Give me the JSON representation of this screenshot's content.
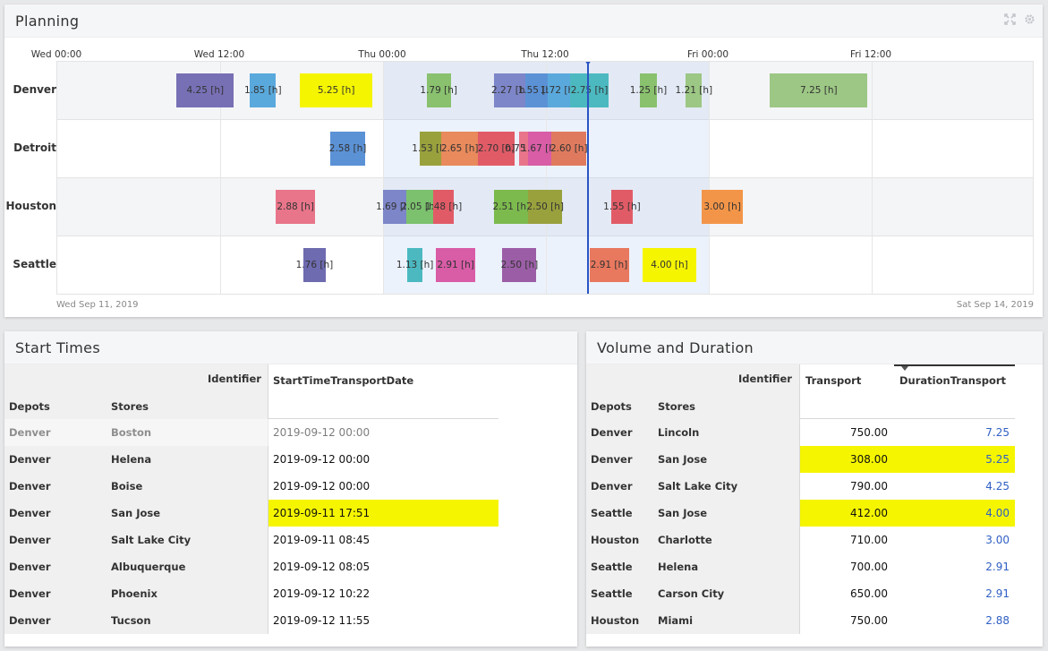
{
  "planning": {
    "title": "Planning",
    "icons": [
      "expand-icon",
      "gear-icon"
    ],
    "axis_labels": [
      "Wed 00:00",
      "Wed 12:00",
      "Thu 00:00",
      "Thu 12:00",
      "Fri 00:00",
      "Fri 12:00"
    ],
    "start_date": "Wed Sep 11, 2019",
    "end_date": "Sat Sep 14, 2019",
    "rows": [
      {
        "label": "Denver",
        "bars": [
          {
            "start": 8.8,
            "end": 13.0,
            "label": "4.25 [h]",
            "color": "#7770b5"
          },
          {
            "start": 14.2,
            "end": 16.1,
            "label": "1.85 [h]",
            "color": "#5aa9dd"
          },
          {
            "start": 17.9,
            "end": 23.2,
            "label": "5.25 [h]",
            "color": "#f5f500"
          },
          {
            "start": 27.2,
            "end": 29.0,
            "label": "1.79 [h]",
            "color": "#89c16e"
          },
          {
            "start": 32.2,
            "end": 34.5,
            "label": "2.27 [h]",
            "color": "#7d86c8"
          },
          {
            "start": 34.5,
            "end": 36.1,
            "label": "1.55 [h]",
            "color": "#5b92d6"
          },
          {
            "start": 36.1,
            "end": 37.8,
            "label": "1.72 [h]",
            "color": "#5aa9dd"
          },
          {
            "start": 37.8,
            "end": 40.6,
            "label": "2.75 [h]",
            "color": "#4cb9c0"
          },
          {
            "start": 42.9,
            "end": 44.2,
            "label": "1.25 [h]",
            "color": "#89c16e"
          },
          {
            "start": 46.3,
            "end": 47.5,
            "label": "1.21 [h]",
            "color": "#9cc784"
          },
          {
            "start": 52.5,
            "end": 59.7,
            "label": "7.25 [h]",
            "color": "#9cc784"
          }
        ]
      },
      {
        "label": "Detroit",
        "bars": [
          {
            "start": 20.1,
            "end": 22.7,
            "label": "2.58 [h]",
            "color": "#5b92d6"
          },
          {
            "start": 26.7,
            "end": 28.3,
            "label": "1.53 [h]",
            "color": "#99a13d"
          },
          {
            "start": 28.3,
            "end": 31.0,
            "label": "2.65 [h]",
            "color": "#e88a5c"
          },
          {
            "start": 31.0,
            "end": 33.7,
            "label": "2.70 [h]",
            "color": "#e15b67"
          },
          {
            "start": 34.0,
            "end": 34.7,
            "label": "0.75 [h]",
            "color": "#e8758a"
          },
          {
            "start": 34.7,
            "end": 36.4,
            "label": "1.67 [h]",
            "color": "#d85ca6"
          },
          {
            "start": 36.4,
            "end": 39.0,
            "label": "2.60 [h]",
            "color": "#e07a5e"
          }
        ]
      },
      {
        "label": "Houston",
        "bars": [
          {
            "start": 16.1,
            "end": 19.0,
            "label": "2.88 [h]",
            "color": "#e8758a"
          },
          {
            "start": 24.0,
            "end": 25.7,
            "label": "1.69 [h]",
            "color": "#7d86c8"
          },
          {
            "start": 25.7,
            "end": 27.7,
            "label": "2.05 [h]",
            "color": "#7cc16e"
          },
          {
            "start": 27.7,
            "end": 29.2,
            "label": "1.48 [h]",
            "color": "#e15b67"
          },
          {
            "start": 32.2,
            "end": 34.7,
            "label": "2.51 [h]",
            "color": "#7cba4e"
          },
          {
            "start": 34.7,
            "end": 37.2,
            "label": "2.50 [h]",
            "color": "#99a13d"
          },
          {
            "start": 40.8,
            "end": 42.4,
            "label": "1.55 [h]",
            "color": "#e15b67"
          },
          {
            "start": 47.5,
            "end": 50.5,
            "label": "3.00 [h]",
            "color": "#f39548"
          }
        ]
      },
      {
        "label": "Seattle",
        "bars": [
          {
            "start": 18.1,
            "end": 19.8,
            "label": "1.76 [h]",
            "color": "#6e6bb0"
          },
          {
            "start": 25.8,
            "end": 26.9,
            "label": "1.13 [h]",
            "color": "#4cb9c0"
          },
          {
            "start": 27.9,
            "end": 30.8,
            "label": "2.91 [h]",
            "color": "#d85ca6"
          },
          {
            "start": 32.8,
            "end": 35.3,
            "label": "2.50 [h]",
            "color": "#9b5ea6"
          },
          {
            "start": 39.2,
            "end": 42.1,
            "label": "2.91 [h]",
            "color": "#e8785e"
          },
          {
            "start": 43.1,
            "end": 47.1,
            "label": "4.00 [h]",
            "color": "#f5f500"
          }
        ]
      }
    ],
    "highlight": {
      "start": 24,
      "end": 48
    },
    "now": 39.1
  },
  "start_times": {
    "title": "Start Times",
    "identifier_label": "Identifier",
    "col_depots": "Depots",
    "col_stores": "Stores",
    "col_value": "StartTimeTransportDate",
    "rows": [
      {
        "depot": "Denver",
        "store": "Boston",
        "value": "2019-09-12 00:00",
        "faded": true,
        "highlight": false
      },
      {
        "depot": "Denver",
        "store": "Helena",
        "value": "2019-09-12 00:00",
        "faded": false,
        "highlight": false
      },
      {
        "depot": "Denver",
        "store": "Boise",
        "value": "2019-09-12 00:00",
        "faded": false,
        "highlight": false
      },
      {
        "depot": "Denver",
        "store": "San Jose",
        "value": "2019-09-11 17:51",
        "faded": false,
        "highlight": true
      },
      {
        "depot": "Denver",
        "store": "Salt Lake City",
        "value": "2019-09-11 08:45",
        "faded": false,
        "highlight": false
      },
      {
        "depot": "Denver",
        "store": "Albuquerque",
        "value": "2019-09-12 08:05",
        "faded": false,
        "highlight": false
      },
      {
        "depot": "Denver",
        "store": "Phoenix",
        "value": "2019-09-12 10:22",
        "faded": false,
        "highlight": false
      },
      {
        "depot": "Denver",
        "store": "Tucson",
        "value": "2019-09-12 11:55",
        "faded": false,
        "highlight": false
      }
    ]
  },
  "volume": {
    "title": "Volume and Duration",
    "identifier_label": "Identifier",
    "col_depots": "Depots",
    "col_stores": "Stores",
    "col_transport": "Transport",
    "col_duration": "DurationTransport",
    "rows": [
      {
        "depot": "Denver",
        "store": "Lincoln",
        "transport": "750.00",
        "duration": "7.25",
        "highlight": false
      },
      {
        "depot": "Denver",
        "store": "San Jose",
        "transport": "308.00",
        "duration": "5.25",
        "highlight": true
      },
      {
        "depot": "Denver",
        "store": "Salt Lake City",
        "transport": "790.00",
        "duration": "4.25",
        "highlight": false
      },
      {
        "depot": "Seattle",
        "store": "San Jose",
        "transport": "412.00",
        "duration": "4.00",
        "highlight": true
      },
      {
        "depot": "Houston",
        "store": "Charlotte",
        "transport": "710.00",
        "duration": "3.00",
        "highlight": false
      },
      {
        "depot": "Seattle",
        "store": "Helena",
        "transport": "700.00",
        "duration": "2.91",
        "highlight": false
      },
      {
        "depot": "Seattle",
        "store": "Carson City",
        "transport": "650.00",
        "duration": "2.91",
        "highlight": false
      },
      {
        "depot": "Houston",
        "store": "Miami",
        "transport": "750.00",
        "duration": "2.88",
        "highlight": false
      }
    ]
  },
  "colors": {
    "highlight": "#f5f500",
    "link_blue": "#2f5fc4",
    "now_line": "#2a54c4"
  }
}
